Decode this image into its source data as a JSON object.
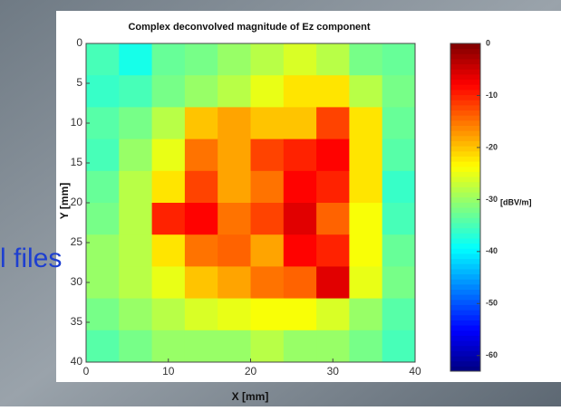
{
  "slide_text": "l files",
  "chart_data": {
    "type": "heatmap",
    "title": "Complex deconvolved magnitude of Ez component",
    "xlabel": "X [mm]",
    "ylabel": "Y [mm]",
    "colorbar_label": "[dBV/m]",
    "xlim": [
      0,
      40
    ],
    "ylim": [
      40,
      0
    ],
    "xticks": [
      0,
      10,
      20,
      30,
      40
    ],
    "yticks": [
      0,
      5,
      10,
      15,
      20,
      25,
      30,
      35,
      40
    ],
    "clim": [
      -63,
      0
    ],
    "cticks": [
      0,
      -10,
      -20,
      -30,
      -40,
      -50,
      -60
    ],
    "colormap": "jet",
    "z": [
      [
        -35,
        -38,
        -33,
        -32,
        -30,
        -28,
        -26,
        -28,
        -32,
        -33
      ],
      [
        -36,
        -35,
        -32,
        -30,
        -28,
        -25,
        -22,
        -22,
        -28,
        -32
      ],
      [
        -34,
        -32,
        -28,
        -20,
        -18,
        -20,
        -20,
        -12,
        -22,
        -33
      ],
      [
        -35,
        -30,
        -25,
        -15,
        -18,
        -12,
        -10,
        -8,
        -22,
        -34
      ],
      [
        -33,
        -28,
        -22,
        -12,
        -18,
        -15,
        -8,
        -10,
        -22,
        -36
      ],
      [
        -32,
        -28,
        -10,
        -8,
        -15,
        -12,
        -6,
        -14,
        -24,
        -35
      ],
      [
        -30,
        -28,
        -22,
        -15,
        -14,
        -18,
        -8,
        -10,
        -24,
        -33
      ],
      [
        -30,
        -28,
        -25,
        -20,
        -18,
        -15,
        -14,
        -6,
        -25,
        -32
      ],
      [
        -32,
        -30,
        -28,
        -26,
        -25,
        -24,
        -24,
        -26,
        -30,
        -34
      ],
      [
        -34,
        -32,
        -30,
        -30,
        -30,
        -28,
        -30,
        -30,
        -32,
        -35
      ]
    ]
  }
}
